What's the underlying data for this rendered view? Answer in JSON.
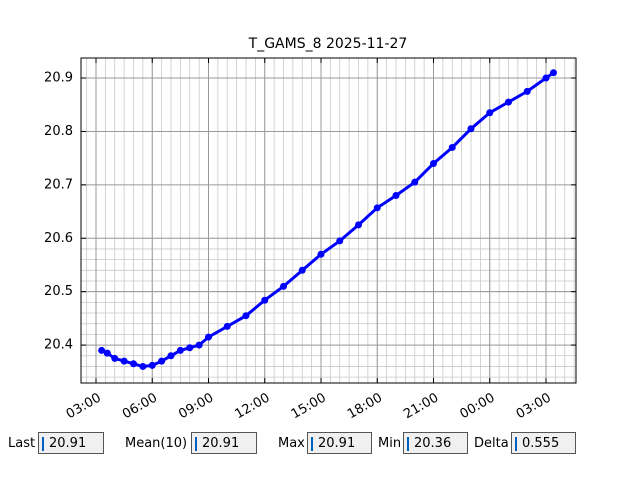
{
  "chart_data": {
    "type": "line",
    "title": "T_GAMS_8 2025-11-27",
    "x": [
      3.3,
      3.6,
      4.0,
      4.5,
      5.0,
      5.5,
      6.0,
      6.5,
      7.0,
      7.5,
      8.0,
      8.5,
      9.0,
      10.0,
      11.0,
      12.0,
      13.0,
      14.0,
      15.0,
      16.0,
      17.0,
      18.0,
      19.0,
      20.0,
      21.0,
      22.0,
      23.0,
      24.0,
      25.0,
      26.0,
      27.0,
      27.4
    ],
    "series": [
      {
        "name": "T_GAMS_8",
        "color": "#0000ff",
        "values": [
          20.39,
          20.385,
          20.375,
          20.37,
          20.365,
          20.36,
          20.362,
          20.37,
          20.38,
          20.39,
          20.395,
          20.4,
          20.415,
          20.435,
          20.455,
          20.484,
          20.51,
          20.54,
          20.57,
          20.595,
          20.625,
          20.657,
          20.68,
          20.705,
          20.74,
          20.77,
          20.805,
          20.835,
          20.855,
          20.875,
          20.9,
          20.91
        ]
      }
    ],
    "xlim": [
      2.2,
      28.6
    ],
    "xticks": [
      {
        "value": 3,
        "label": "03:00"
      },
      {
        "value": 6,
        "label": "06:00"
      },
      {
        "value": 9,
        "label": "09:00"
      },
      {
        "value": 12,
        "label": "12:00"
      },
      {
        "value": 15,
        "label": "15:00"
      },
      {
        "value": 18,
        "label": "18:00"
      },
      {
        "value": 21,
        "label": "21:00"
      },
      {
        "value": 24,
        "label": "00:00"
      },
      {
        "value": 27,
        "label": "03:00"
      }
    ],
    "ylim": [
      20.329,
      20.9375
    ],
    "yticks": [
      20.4,
      20.5,
      20.6,
      20.7,
      20.8,
      20.9
    ],
    "grid": true
  },
  "fields": [
    {
      "label": "Last",
      "value": "20.91"
    },
    {
      "label": "Mean(10)",
      "value": "20.91"
    },
    {
      "label": "Max",
      "value": "20.91"
    },
    {
      "label": "Min",
      "value": "20.36"
    },
    {
      "label": "Delta",
      "value": "0.555"
    }
  ]
}
